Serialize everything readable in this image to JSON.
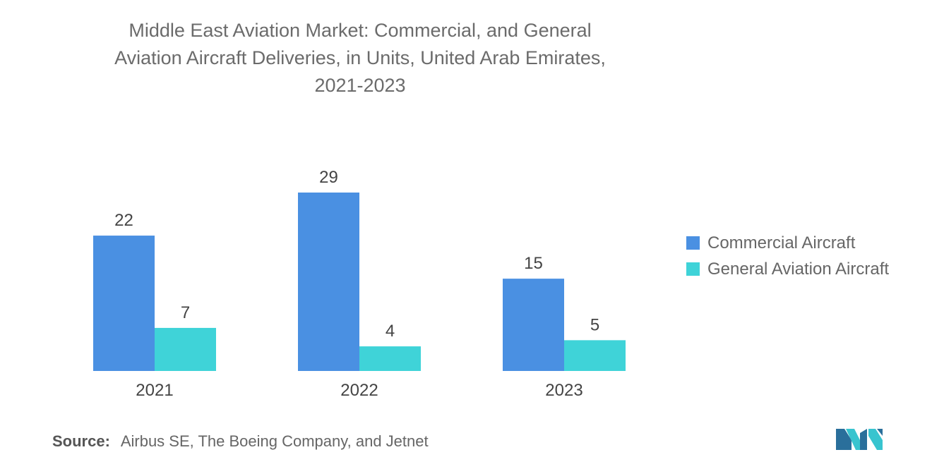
{
  "chart_data": {
    "type": "bar",
    "title": "Middle East Aviation Market: Commercial, and General\nAviation Aircraft Deliveries, in Units, United Arab Emirates,\n2021-2023",
    "categories": [
      "2021",
      "2022",
      "2023"
    ],
    "series": [
      {
        "name": "Commercial Aircraft",
        "values": [
          22,
          29,
          15
        ],
        "color": "#4a90e2"
      },
      {
        "name": "General Aviation Aircraft",
        "values": [
          7,
          4,
          5
        ],
        "color": "#3fd3d8"
      }
    ],
    "xlabel": "",
    "ylabel": "",
    "ylim": [
      0,
      29
    ],
    "grid": false,
    "legend_position": "right"
  },
  "source": {
    "label": "Source:",
    "text": "Airbus SE, The Boeing Company, and Jetnet"
  },
  "logo": {
    "icon": "mordor-logo-icon",
    "colors": [
      "#2a6f9b",
      "#38c4cf"
    ]
  }
}
